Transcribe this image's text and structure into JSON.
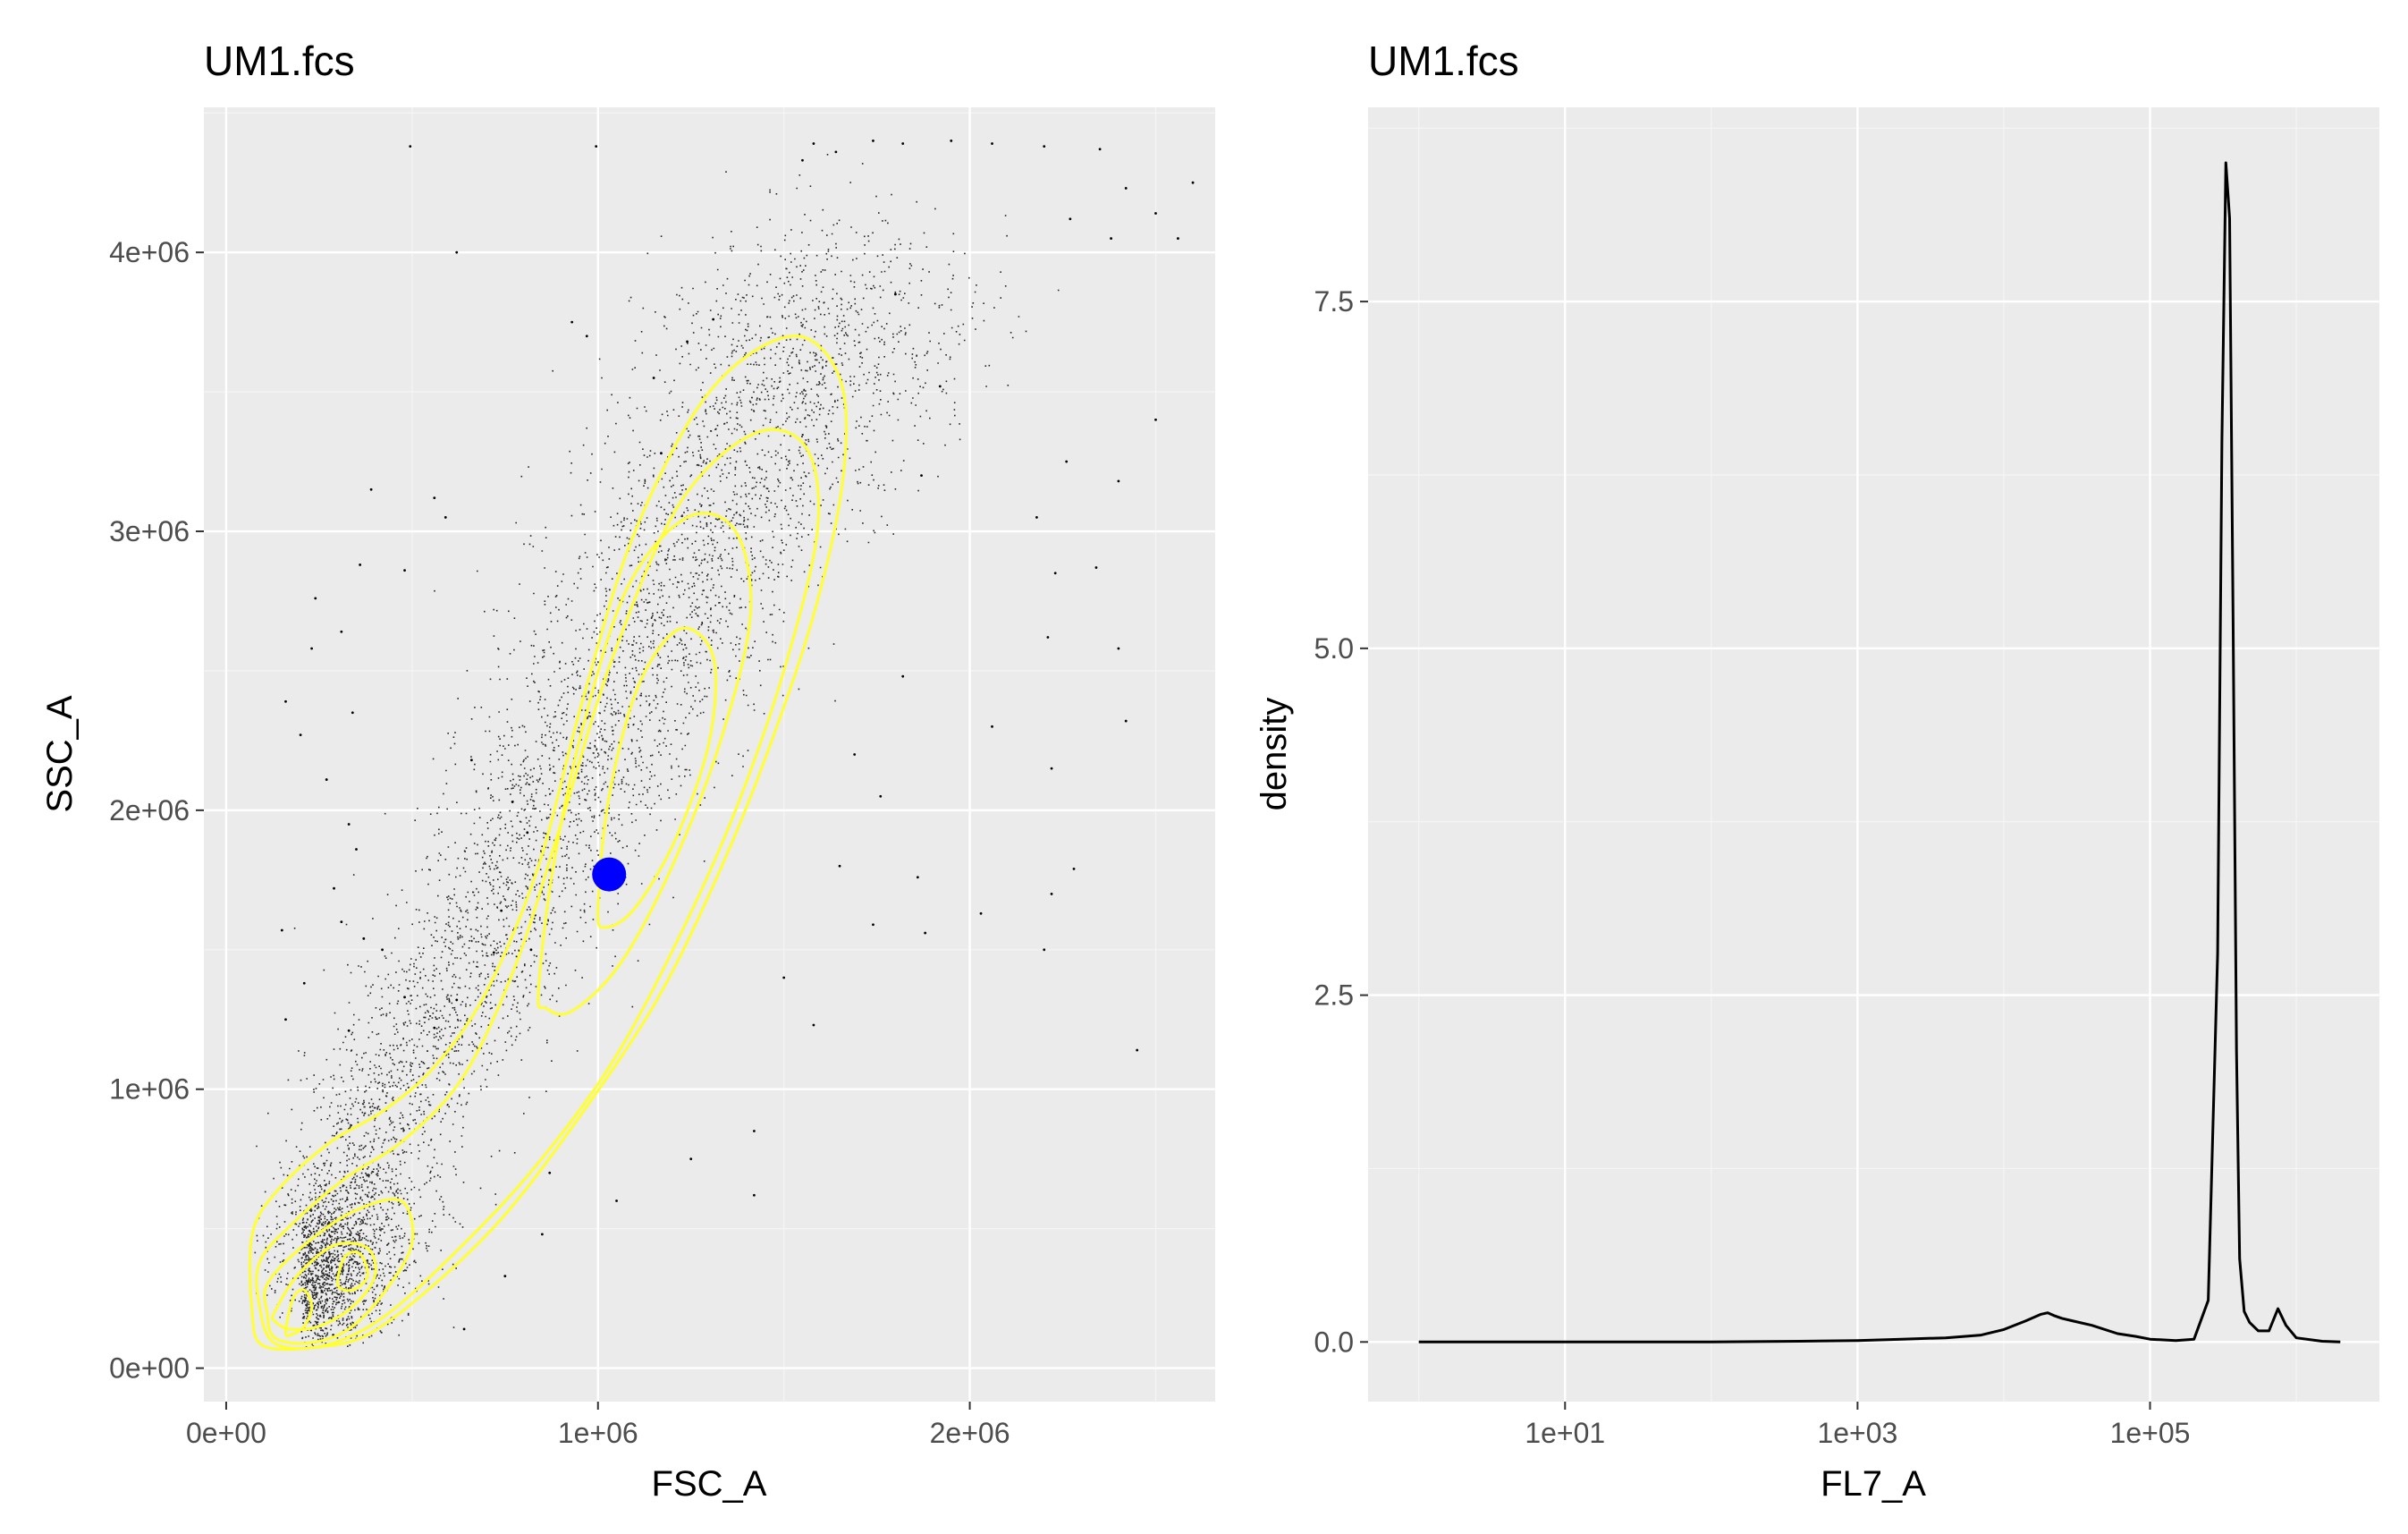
{
  "chart_data": [
    {
      "type": "scatter",
      "title": "UM1.fcs",
      "xlabel": "FSC_A",
      "ylabel": "SSC_A",
      "xlim": [
        -60000,
        2660000
      ],
      "ylim": [
        -120000,
        4520000
      ],
      "x_ticks": [
        0,
        1000000,
        2000000
      ],
      "x_tick_labels": [
        "0e+00",
        "1e+06",
        "2e+06"
      ],
      "y_ticks": [
        0,
        1000000,
        2000000,
        3000000,
        4000000
      ],
      "y_tick_labels": [
        "0e+00",
        "1e+06",
        "2e+06",
        "3e+06",
        "4e+06"
      ],
      "grid": true,
      "point_color": "#000000",
      "density_contour_color": "#ffff33",
      "centroid": {
        "x": 1030000,
        "y": 1770000,
        "color": "#0000ff"
      },
      "density_contours": [
        {
          "level": 1,
          "points": [
            [
              70000,
              480000
            ],
            [
              140000,
              640000
            ],
            [
              280000,
              810000
            ],
            [
              420000,
              920000
            ],
            [
              560000,
              1080000
            ],
            [
              700000,
              1350000
            ],
            [
              840000,
              1800000
            ],
            [
              960000,
              2400000
            ],
            [
              1100000,
              3000000
            ],
            [
              1300000,
              3500000
            ],
            [
              1520000,
              3700000
            ],
            [
              1650000,
              3550000
            ],
            [
              1660000,
              3200000
            ],
            [
              1580000,
              2700000
            ],
            [
              1440000,
              2150000
            ],
            [
              1300000,
              1700000
            ],
            [
              1150000,
              1300000
            ],
            [
              950000,
              900000
            ],
            [
              750000,
              550000
            ],
            [
              560000,
              300000
            ],
            [
              380000,
              120000
            ],
            [
              240000,
              75000
            ],
            [
              100000,
              80000
            ],
            [
              70000,
              200000
            ]
          ]
        },
        {
          "level": 2,
          "points": [
            [
              90000,
              380000
            ],
            [
              180000,
              520000
            ],
            [
              320000,
              680000
            ],
            [
              480000,
              820000
            ],
            [
              640000,
              1050000
            ],
            [
              780000,
              1450000
            ],
            [
              900000,
              1950000
            ],
            [
              1040000,
              2550000
            ],
            [
              1220000,
              3100000
            ],
            [
              1420000,
              3350000
            ],
            [
              1560000,
              3300000
            ],
            [
              1590000,
              3000000
            ],
            [
              1500000,
              2500000
            ],
            [
              1370000,
              2000000
            ],
            [
              1220000,
              1550000
            ],
            [
              1040000,
              1100000
            ],
            [
              830000,
              720000
            ],
            [
              620000,
              420000
            ],
            [
              420000,
              180000
            ],
            [
              260000,
              80000
            ],
            [
              130000,
              90000
            ],
            [
              90000,
              220000
            ]
          ]
        },
        {
          "level": 3,
          "points": [
            [
              110000,
              300000
            ],
            [
              200000,
              430000
            ],
            [
              340000,
              560000
            ],
            [
              470000,
              600000
            ],
            [
              500000,
              450000
            ],
            [
              430000,
              280000
            ],
            [
              330000,
              140000
            ],
            [
              220000,
              90000
            ],
            [
              130000,
              110000
            ],
            [
              110000,
              200000
            ]
          ]
        },
        {
          "level": 4,
          "points": [
            [
              840000,
              1350000
            ],
            [
              880000,
              1800000
            ],
            [
              960000,
              2300000
            ],
            [
              1080000,
              2800000
            ],
            [
              1240000,
              3050000
            ],
            [
              1370000,
              3000000
            ],
            [
              1410000,
              2700000
            ],
            [
              1330000,
              2250000
            ],
            [
              1200000,
              1800000
            ],
            [
              1060000,
              1450000
            ],
            [
              930000,
              1280000
            ],
            [
              860000,
              1290000
            ]
          ]
        },
        {
          "level": 5,
          "points": [
            [
              1000000,
              1650000
            ],
            [
              1030000,
              2050000
            ],
            [
              1110000,
              2450000
            ],
            [
              1220000,
              2650000
            ],
            [
              1310000,
              2550000
            ],
            [
              1300000,
              2250000
            ],
            [
              1210000,
              1900000
            ],
            [
              1100000,
              1650000
            ],
            [
              1020000,
              1580000
            ]
          ]
        },
        {
          "level": 6,
          "points": [
            [
              130000,
              200000
            ],
            [
              190000,
              330000
            ],
            [
              290000,
              440000
            ],
            [
              380000,
              430000
            ],
            [
              400000,
              330000
            ],
            [
              340000,
              220000
            ],
            [
              250000,
              150000
            ],
            [
              170000,
              140000
            ],
            [
              130000,
              170000
            ]
          ]
        },
        {
          "level": 7,
          "points": [
            [
              160000,
              130000
            ],
            [
              180000,
              250000
            ],
            [
              210000,
              280000
            ],
            [
              230000,
              220000
            ],
            [
              210000,
              150000
            ],
            [
              175000,
              120000
            ]
          ]
        },
        {
          "level": 8,
          "points": [
            [
              300000,
              300000
            ],
            [
              320000,
              400000
            ],
            [
              360000,
              410000
            ],
            [
              380000,
              330000
            ],
            [
              340000,
              280000
            ]
          ]
        }
      ],
      "outlier_points": [
        [
          495000,
          4380000
        ],
        [
          995000,
          4380000
        ],
        [
          1580000,
          4390000
        ],
        [
          1740000,
          4400000
        ],
        [
          1950000,
          4400000
        ],
        [
          2060000,
          4390000
        ],
        [
          2200000,
          4380000
        ],
        [
          2350000,
          4370000
        ],
        [
          2420000,
          4230000
        ],
        [
          2500000,
          4140000
        ],
        [
          2560000,
          4050000
        ],
        [
          2600000,
          4250000
        ],
        [
          1550000,
          4330000
        ],
        [
          1640000,
          4360000
        ],
        [
          1820000,
          4390000
        ],
        [
          2270000,
          4120000
        ],
        [
          2380000,
          4050000
        ],
        [
          620000,
          4000000
        ],
        [
          390000,
          3150000
        ],
        [
          590000,
          3050000
        ],
        [
          360000,
          2880000
        ],
        [
          930000,
          3750000
        ],
        [
          970000,
          3700000
        ],
        [
          2260000,
          3250000
        ],
        [
          2400000,
          3180000
        ],
        [
          2500000,
          3400000
        ],
        [
          2210000,
          2620000
        ],
        [
          2400000,
          2580000
        ],
        [
          2420000,
          2320000
        ],
        [
          2220000,
          2150000
        ],
        [
          2180000,
          3050000
        ],
        [
          2340000,
          2870000
        ],
        [
          2230000,
          2850000
        ],
        [
          2060000,
          2300000
        ],
        [
          2200000,
          1500000
        ],
        [
          2220000,
          1700000
        ],
        [
          2280000,
          1790000
        ],
        [
          2450000,
          1140000
        ],
        [
          1860000,
          1760000
        ],
        [
          1880000,
          1560000
        ],
        [
          2030000,
          1630000
        ],
        [
          480000,
          2860000
        ],
        [
          560000,
          3120000
        ],
        [
          240000,
          2760000
        ],
        [
          310000,
          2640000
        ],
        [
          230000,
          2580000
        ],
        [
          160000,
          2390000
        ],
        [
          200000,
          2270000
        ],
        [
          340000,
          2350000
        ],
        [
          270000,
          2110000
        ],
        [
          330000,
          1950000
        ],
        [
          350000,
          1860000
        ],
        [
          290000,
          1720000
        ],
        [
          310000,
          1600000
        ],
        [
          150000,
          1570000
        ],
        [
          370000,
          1540000
        ],
        [
          420000,
          1500000
        ],
        [
          210000,
          1380000
        ],
        [
          160000,
          1250000
        ],
        [
          330000,
          1210000
        ],
        [
          480000,
          1330000
        ],
        [
          620000,
          1320000
        ],
        [
          770000,
          2030000
        ],
        [
          810000,
          1920000
        ],
        [
          660000,
          2180000
        ],
        [
          740000,
          1640000
        ],
        [
          720000,
          1490000
        ],
        [
          560000,
          1220000
        ],
        [
          1150000,
          3550000
        ],
        [
          1240000,
          3680000
        ],
        [
          1310000,
          3760000
        ],
        [
          1170000,
          3280000
        ],
        [
          1870000,
          3200000
        ],
        [
          1920000,
          3520000
        ],
        [
          1800000,
          3850000
        ],
        [
          1690000,
          2200000
        ],
        [
          1760000,
          2050000
        ],
        [
          1820000,
          2480000
        ],
        [
          1420000,
          850000
        ],
        [
          1420000,
          620000
        ],
        [
          1250000,
          750000
        ],
        [
          1050000,
          600000
        ],
        [
          870000,
          700000
        ],
        [
          850000,
          480000
        ],
        [
          750000,
          330000
        ],
        [
          640000,
          140000
        ],
        [
          820000,
          1500000
        ],
        [
          1650000,
          1800000
        ],
        [
          1740000,
          1590000
        ],
        [
          1500000,
          1400000
        ],
        [
          1580000,
          1230000
        ]
      ],
      "note_points": "Dense cloud of roughly 15000 events follows the elongated yellow density contours; outlier points listed individually."
    },
    {
      "type": "line",
      "title": "UM1.fcs",
      "xlabel": "FL7_A",
      "ylabel": "density",
      "x_scale": "log10",
      "xlim": [
        0.45,
        3700000
      ],
      "ylim": [
        -0.43,
        8.9
      ],
      "x_ticks": [
        10,
        1000,
        100000
      ],
      "x_tick_labels": [
        "1e+01",
        "1e+03",
        "1e+05"
      ],
      "y_ticks": [
        0,
        2.5,
        5,
        7.5
      ],
      "y_tick_labels": [
        "0.0",
        "2.5",
        "5.0",
        "7.5"
      ],
      "grid": true,
      "line_color": "#000000",
      "series": [
        {
          "x": [
            1,
            10,
            100,
            400,
            1000,
            2000,
            4000,
            7000,
            10000,
            14000,
            18000,
            20000,
            22000,
            25000,
            30000,
            40000,
            60000,
            80000,
            100000,
            150000,
            200000,
            250000,
            290000,
            310000,
            330000,
            350000,
            370000,
            390000,
            410000,
            440000,
            480000,
            550000,
            650000,
            750000,
            850000,
            1000000,
            1500000,
            2000000
          ],
          "y": [
            0,
            0,
            0,
            0.005,
            0.01,
            0.02,
            0.03,
            0.05,
            0.09,
            0.15,
            0.2,
            0.21,
            0.19,
            0.17,
            0.15,
            0.12,
            0.06,
            0.04,
            0.02,
            0.01,
            0.02,
            0.3,
            2.8,
            6.5,
            8.5,
            8.1,
            5.2,
            2.1,
            0.6,
            0.22,
            0.14,
            0.08,
            0.08,
            0.24,
            0.12,
            0.03,
            0.005,
            0
          ]
        }
      ]
    }
  ]
}
